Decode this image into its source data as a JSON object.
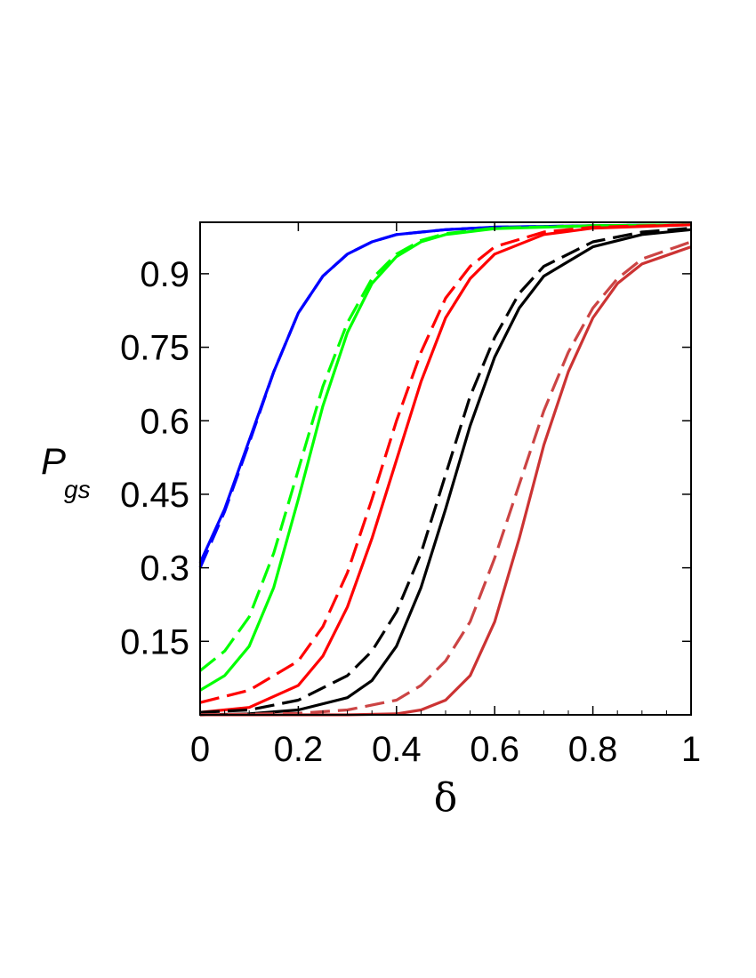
{
  "chart_data": {
    "type": "line",
    "xlabel": "δ",
    "ylabel_main": "P",
    "ylabel_sub": "gs",
    "xlim": [
      0,
      1
    ],
    "ylim": [
      0,
      1.005
    ],
    "xticks": [
      0,
      0.2,
      0.4,
      0.6,
      0.8,
      1
    ],
    "xtick_labels": [
      "0",
      "0.2",
      "0.4",
      "0.6",
      "0.8",
      "1"
    ],
    "yticks": [
      0.15,
      0.3,
      0.45,
      0.6,
      0.75,
      0.9
    ],
    "ytick_labels": [
      "0.15",
      "0.3",
      "0.45",
      "0.6",
      "0.75",
      "0.9"
    ],
    "grid": false,
    "series": [
      {
        "color": "#0000ff",
        "dash": "solid",
        "x": [
          0,
          0.05,
          0.1,
          0.15,
          0.2,
          0.25,
          0.3,
          0.35,
          0.4,
          0.5,
          0.6,
          0.8,
          1
        ],
        "y": [
          0.31,
          0.42,
          0.56,
          0.7,
          0.82,
          0.895,
          0.94,
          0.965,
          0.98,
          0.99,
          0.995,
          0.998,
          1.0
        ]
      },
      {
        "color": "#0000ff",
        "dash": "dashed",
        "x": [
          0,
          0.05,
          0.1,
          0.15,
          0.2,
          0.25,
          0.3,
          0.35,
          0.4,
          0.5,
          0.6,
          0.8,
          1
        ],
        "y": [
          0.3,
          0.415,
          0.555,
          0.7,
          0.82,
          0.895,
          0.94,
          0.965,
          0.98,
          0.99,
          0.995,
          0.998,
          1.0
        ]
      },
      {
        "color": "#00ff00",
        "dash": "solid",
        "x": [
          0,
          0.05,
          0.1,
          0.15,
          0.2,
          0.25,
          0.3,
          0.35,
          0.4,
          0.45,
          0.5,
          0.6,
          0.8,
          1
        ],
        "y": [
          0.05,
          0.08,
          0.14,
          0.26,
          0.44,
          0.63,
          0.78,
          0.88,
          0.935,
          0.965,
          0.98,
          0.992,
          0.998,
          1.0
        ]
      },
      {
        "color": "#00ff00",
        "dash": "dashed",
        "x": [
          0,
          0.05,
          0.1,
          0.15,
          0.2,
          0.25,
          0.3,
          0.35,
          0.4,
          0.45,
          0.5,
          0.6,
          0.8,
          1
        ],
        "y": [
          0.09,
          0.13,
          0.2,
          0.33,
          0.5,
          0.67,
          0.8,
          0.89,
          0.94,
          0.968,
          0.982,
          0.993,
          0.998,
          1.0
        ]
      },
      {
        "color": "#ff0000",
        "dash": "solid",
        "x": [
          0,
          0.1,
          0.2,
          0.25,
          0.3,
          0.35,
          0.4,
          0.45,
          0.5,
          0.55,
          0.6,
          0.7,
          0.8,
          1
        ],
        "y": [
          0.005,
          0.015,
          0.06,
          0.12,
          0.22,
          0.36,
          0.52,
          0.68,
          0.81,
          0.89,
          0.94,
          0.98,
          0.993,
          1.0
        ]
      },
      {
        "color": "#ff0000",
        "dash": "dashed",
        "x": [
          0,
          0.1,
          0.2,
          0.25,
          0.3,
          0.35,
          0.4,
          0.45,
          0.5,
          0.55,
          0.6,
          0.7,
          0.8,
          1
        ],
        "y": [
          0.025,
          0.05,
          0.11,
          0.18,
          0.29,
          0.44,
          0.6,
          0.74,
          0.85,
          0.915,
          0.955,
          0.985,
          0.995,
          1.0
        ]
      },
      {
        "color": "#000000",
        "dash": "solid",
        "x": [
          0,
          0.1,
          0.2,
          0.3,
          0.35,
          0.4,
          0.45,
          0.5,
          0.55,
          0.6,
          0.65,
          0.7,
          0.8,
          0.9,
          1
        ],
        "y": [
          0.0,
          0.002,
          0.01,
          0.035,
          0.07,
          0.14,
          0.26,
          0.42,
          0.59,
          0.73,
          0.83,
          0.895,
          0.955,
          0.98,
          0.99
        ]
      },
      {
        "color": "#000000",
        "dash": "dashed",
        "x": [
          0,
          0.1,
          0.2,
          0.3,
          0.35,
          0.4,
          0.45,
          0.5,
          0.55,
          0.6,
          0.65,
          0.7,
          0.8,
          0.9,
          1
        ],
        "y": [
          0.005,
          0.01,
          0.03,
          0.08,
          0.13,
          0.21,
          0.33,
          0.49,
          0.65,
          0.77,
          0.86,
          0.915,
          0.965,
          0.985,
          0.993
        ]
      },
      {
        "color": "#cc3333",
        "dash": "solid",
        "x": [
          0,
          0.2,
          0.3,
          0.4,
          0.45,
          0.5,
          0.55,
          0.6,
          0.65,
          0.7,
          0.75,
          0.8,
          0.85,
          0.9,
          1
        ],
        "y": [
          0.0,
          0.0,
          0.0,
          0.002,
          0.01,
          0.03,
          0.08,
          0.19,
          0.36,
          0.55,
          0.7,
          0.81,
          0.88,
          0.92,
          0.955
        ]
      },
      {
        "color": "#cc4444",
        "dash": "dashed",
        "x": [
          0,
          0.2,
          0.3,
          0.4,
          0.45,
          0.5,
          0.55,
          0.6,
          0.65,
          0.7,
          0.75,
          0.8,
          0.85,
          0.9,
          1
        ],
        "y": [
          0.0,
          0.003,
          0.01,
          0.03,
          0.06,
          0.11,
          0.19,
          0.32,
          0.47,
          0.62,
          0.74,
          0.83,
          0.89,
          0.93,
          0.965
        ]
      }
    ]
  }
}
